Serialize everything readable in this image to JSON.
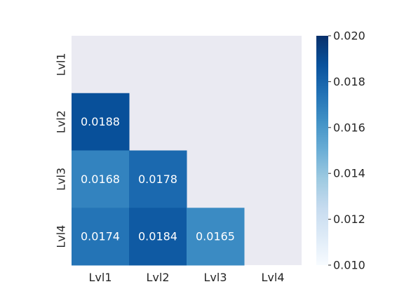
{
  "chart_data": {
    "type": "heatmap",
    "mask": "upper-triangle-and-diagonal",
    "x_categories": [
      "Lvl1",
      "Lvl2",
      "Lvl3",
      "Lvl4"
    ],
    "y_categories": [
      "Lvl1",
      "Lvl2",
      "Lvl3",
      "Lvl4"
    ],
    "cells": [
      {
        "row": "Lvl2",
        "col": "Lvl1",
        "value": 0.0188,
        "label": "0.0188"
      },
      {
        "row": "Lvl3",
        "col": "Lvl1",
        "value": 0.0168,
        "label": "0.0168"
      },
      {
        "row": "Lvl3",
        "col": "Lvl2",
        "value": 0.0178,
        "label": "0.0178"
      },
      {
        "row": "Lvl4",
        "col": "Lvl1",
        "value": 0.0174,
        "label": "0.0174"
      },
      {
        "row": "Lvl4",
        "col": "Lvl2",
        "value": 0.0184,
        "label": "0.0184"
      },
      {
        "row": "Lvl4",
        "col": "Lvl3",
        "value": 0.0165,
        "label": "0.0165"
      }
    ],
    "colorbar": {
      "min": 0.01,
      "max": 0.02,
      "ticks": [
        0.01,
        0.012,
        0.014,
        0.016,
        0.018,
        0.02
      ],
      "tick_labels": [
        "0.010",
        "0.012",
        "0.014",
        "0.016",
        "0.018",
        "0.020"
      ],
      "colormap": "Blues"
    },
    "background_color": "#eaeaf2",
    "title": "",
    "xlabel": "",
    "ylabel": ""
  }
}
